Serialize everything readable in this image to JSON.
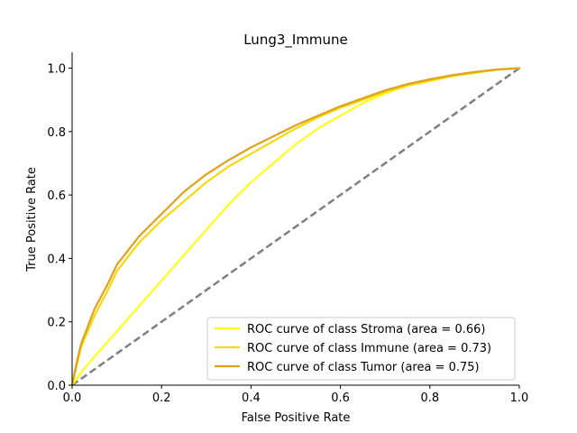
{
  "chart_data": {
    "type": "line",
    "title": "Lung3_Immune",
    "xlabel": "False Positive Rate",
    "ylabel": "True Positive Rate",
    "xlim": [
      0.0,
      1.0
    ],
    "ylim": [
      0.0,
      1.05
    ],
    "xticks": [
      0.0,
      0.2,
      0.4,
      0.6,
      0.8,
      1.0
    ],
    "yticks": [
      0.0,
      0.2,
      0.4,
      0.6,
      0.8,
      1.0
    ],
    "xtick_labels": [
      "0.0",
      "0.2",
      "0.4",
      "0.6",
      "0.8",
      "1.0"
    ],
    "ytick_labels": [
      "0.0",
      "0.2",
      "0.4",
      "0.6",
      "0.8",
      "1.0"
    ],
    "grid": false,
    "legend_position": "lower-right",
    "series": [
      {
        "name": "ROC curve of class Stroma (area = 0.66)",
        "color": "#ffff1a",
        "x": [
          0.0,
          0.02,
          0.05,
          0.1,
          0.15,
          0.2,
          0.25,
          0.3,
          0.35,
          0.4,
          0.45,
          0.5,
          0.55,
          0.6,
          0.65,
          0.7,
          0.75,
          0.8,
          0.85,
          0.9,
          0.95,
          1.0
        ],
        "y": [
          0.0,
          0.04,
          0.09,
          0.17,
          0.25,
          0.33,
          0.41,
          0.49,
          0.57,
          0.64,
          0.7,
          0.76,
          0.81,
          0.85,
          0.89,
          0.92,
          0.945,
          0.96,
          0.975,
          0.985,
          0.995,
          1.0
        ]
      },
      {
        "name": "ROC curve of class Immune (area = 0.73)",
        "color": "#f5d90a",
        "x": [
          0.0,
          0.01,
          0.02,
          0.05,
          0.08,
          0.1,
          0.15,
          0.2,
          0.25,
          0.3,
          0.35,
          0.4,
          0.45,
          0.5,
          0.55,
          0.6,
          0.65,
          0.7,
          0.75,
          0.8,
          0.85,
          0.9,
          0.95,
          1.0
        ],
        "y": [
          0.0,
          0.06,
          0.12,
          0.22,
          0.3,
          0.36,
          0.45,
          0.52,
          0.58,
          0.64,
          0.69,
          0.73,
          0.77,
          0.81,
          0.845,
          0.875,
          0.9,
          0.925,
          0.945,
          0.96,
          0.975,
          0.985,
          0.995,
          1.0
        ]
      },
      {
        "name": "ROC curve of class Tumor (area = 0.75)",
        "color": "#e0a21c",
        "x": [
          0.0,
          0.01,
          0.02,
          0.05,
          0.08,
          0.1,
          0.15,
          0.2,
          0.25,
          0.3,
          0.35,
          0.4,
          0.45,
          0.5,
          0.55,
          0.6,
          0.65,
          0.7,
          0.75,
          0.8,
          0.85,
          0.9,
          0.95,
          1.0
        ],
        "y": [
          0.0,
          0.07,
          0.13,
          0.24,
          0.32,
          0.38,
          0.47,
          0.54,
          0.61,
          0.665,
          0.71,
          0.75,
          0.785,
          0.82,
          0.85,
          0.88,
          0.905,
          0.93,
          0.95,
          0.965,
          0.978,
          0.988,
          0.996,
          1.0
        ]
      }
    ],
    "reference_line": {
      "x": [
        0.0,
        1.0
      ],
      "y": [
        0.0,
        1.0
      ],
      "color": "#808080",
      "style": "dashed"
    }
  }
}
